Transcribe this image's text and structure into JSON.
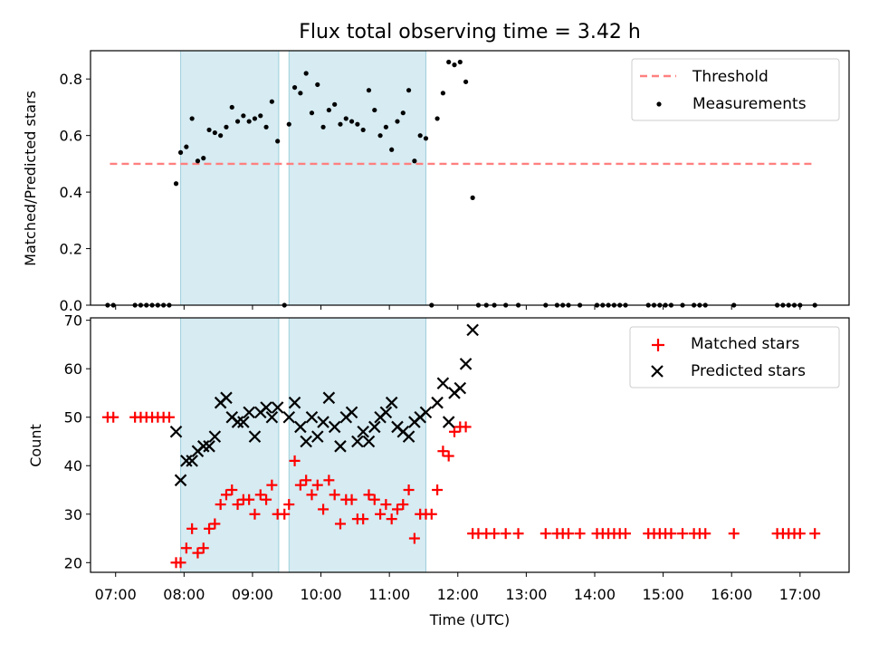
{
  "figure": {
    "title": "Flux total observing time = 3.42 h",
    "xlabel": "Time (UTC)",
    "x_ticks": [
      "07:00",
      "08:00",
      "09:00",
      "10:00",
      "11:00",
      "12:00",
      "13:00",
      "14:00",
      "15:00",
      "16:00",
      "17:00"
    ]
  },
  "chart_data": [
    {
      "type": "scatter",
      "ylabel": "Matched/Predicted stars",
      "xlim": [
        "06:38",
        "17:43"
      ],
      "ylim": [
        0,
        0.9
      ],
      "y_ticks": [
        "0.0",
        "0.2",
        "0.4",
        "0.6",
        "0.8"
      ],
      "legend_position": "top-right",
      "shaded_intervals": [
        [
          "07:57",
          "09:23"
        ],
        [
          "09:32",
          "11:32"
        ]
      ],
      "series": [
        {
          "name": "Threshold",
          "kind": "dashed-line",
          "color": "#ff8080",
          "points": [
            [
              "06:55",
              0.5
            ],
            [
              "17:10",
              0.5
            ]
          ]
        },
        {
          "name": "Measurements",
          "kind": "dots",
          "color": "#000000",
          "points": [
            [
              "06:53",
              0.0
            ],
            [
              "06:58",
              0.0
            ],
            [
              "07:17",
              0.0
            ],
            [
              "07:22",
              0.0
            ],
            [
              "07:27",
              0.0
            ],
            [
              "07:32",
              0.0
            ],
            [
              "07:37",
              0.0
            ],
            [
              "07:42",
              0.0
            ],
            [
              "07:47",
              0.0
            ],
            [
              "07:53",
              0.43
            ],
            [
              "07:57",
              0.54
            ],
            [
              "08:02",
              0.56
            ],
            [
              "08:07",
              0.66
            ],
            [
              "08:12",
              0.51
            ],
            [
              "08:17",
              0.52
            ],
            [
              "08:22",
              0.62
            ],
            [
              "08:27",
              0.61
            ],
            [
              "08:32",
              0.6
            ],
            [
              "08:37",
              0.63
            ],
            [
              "08:42",
              0.7
            ],
            [
              "08:47",
              0.65
            ],
            [
              "08:52",
              0.67
            ],
            [
              "08:57",
              0.65
            ],
            [
              "09:02",
              0.66
            ],
            [
              "09:07",
              0.67
            ],
            [
              "09:12",
              0.63
            ],
            [
              "09:17",
              0.72
            ],
            [
              "09:22",
              0.58
            ],
            [
              "09:28",
              0.0
            ],
            [
              "09:32",
              0.64
            ],
            [
              "09:37",
              0.77
            ],
            [
              "09:42",
              0.75
            ],
            [
              "09:47",
              0.82
            ],
            [
              "09:52",
              0.68
            ],
            [
              "09:57",
              0.78
            ],
            [
              "10:02",
              0.63
            ],
            [
              "10:07",
              0.69
            ],
            [
              "10:12",
              0.71
            ],
            [
              "10:17",
              0.64
            ],
            [
              "10:22",
              0.66
            ],
            [
              "10:27",
              0.65
            ],
            [
              "10:32",
              0.64
            ],
            [
              "10:37",
              0.62
            ],
            [
              "10:42",
              0.76
            ],
            [
              "10:47",
              0.69
            ],
            [
              "10:52",
              0.6
            ],
            [
              "10:57",
              0.63
            ],
            [
              "11:02",
              0.55
            ],
            [
              "11:07",
              0.65
            ],
            [
              "11:12",
              0.68
            ],
            [
              "11:17",
              0.76
            ],
            [
              "11:22",
              0.51
            ],
            [
              "11:27",
              0.6
            ],
            [
              "11:32",
              0.59
            ],
            [
              "11:37",
              0.0
            ],
            [
              "11:42",
              0.66
            ],
            [
              "11:47",
              0.75
            ],
            [
              "11:52",
              0.86
            ],
            [
              "11:57",
              0.85
            ],
            [
              "12:02",
              0.86
            ],
            [
              "12:07",
              0.79
            ],
            [
              "12:13",
              0.38
            ],
            [
              "12:18",
              0.0
            ],
            [
              "12:25",
              0.0
            ],
            [
              "12:32",
              0.0
            ],
            [
              "12:42",
              0.0
            ],
            [
              "12:53",
              0.0
            ],
            [
              "13:17",
              0.0
            ],
            [
              "13:27",
              0.0
            ],
            [
              "13:32",
              0.0
            ],
            [
              "13:37",
              0.0
            ],
            [
              "13:47",
              0.0
            ],
            [
              "14:02",
              0.0
            ],
            [
              "14:07",
              0.0
            ],
            [
              "14:12",
              0.0
            ],
            [
              "14:17",
              0.0
            ],
            [
              "14:22",
              0.0
            ],
            [
              "14:27",
              0.0
            ],
            [
              "14:47",
              0.0
            ],
            [
              "14:52",
              0.0
            ],
            [
              "14:57",
              0.0
            ],
            [
              "15:02",
              0.0
            ],
            [
              "15:07",
              0.0
            ],
            [
              "15:17",
              0.0
            ],
            [
              "15:27",
              0.0
            ],
            [
              "15:32",
              0.0
            ],
            [
              "15:37",
              0.0
            ],
            [
              "16:02",
              0.0
            ],
            [
              "16:40",
              0.0
            ],
            [
              "16:45",
              0.0
            ],
            [
              "16:50",
              0.0
            ],
            [
              "16:55",
              0.0
            ],
            [
              "17:00",
              0.0
            ],
            [
              "17:13",
              0.0
            ]
          ]
        }
      ]
    },
    {
      "type": "scatter",
      "ylabel": "Count",
      "xlim": [
        "06:38",
        "17:43"
      ],
      "ylim": [
        18,
        70.5
      ],
      "y_ticks": [
        "20",
        "30",
        "40",
        "50",
        "60",
        "70"
      ],
      "legend_position": "top-right",
      "shaded_intervals": [
        [
          "07:57",
          "09:23"
        ],
        [
          "09:32",
          "11:32"
        ]
      ],
      "series": [
        {
          "name": "Matched stars",
          "kind": "plus",
          "color": "#ff0000",
          "points": [
            [
              "06:53",
              50
            ],
            [
              "06:58",
              50
            ],
            [
              "07:17",
              50
            ],
            [
              "07:22",
              50
            ],
            [
              "07:27",
              50
            ],
            [
              "07:32",
              50
            ],
            [
              "07:37",
              50
            ],
            [
              "07:42",
              50
            ],
            [
              "07:47",
              50
            ],
            [
              "07:53",
              20
            ],
            [
              "07:57",
              20
            ],
            [
              "08:02",
              23
            ],
            [
              "08:07",
              27
            ],
            [
              "08:12",
              22
            ],
            [
              "08:17",
              23
            ],
            [
              "08:22",
              27
            ],
            [
              "08:27",
              28
            ],
            [
              "08:32",
              32
            ],
            [
              "08:37",
              34
            ],
            [
              "08:42",
              35
            ],
            [
              "08:47",
              32
            ],
            [
              "08:52",
              33
            ],
            [
              "08:57",
              33
            ],
            [
              "09:02",
              30
            ],
            [
              "09:07",
              34
            ],
            [
              "09:12",
              33
            ],
            [
              "09:17",
              36
            ],
            [
              "09:22",
              30
            ],
            [
              "09:28",
              30
            ],
            [
              "09:32",
              32
            ],
            [
              "09:37",
              41
            ],
            [
              "09:42",
              36
            ],
            [
              "09:47",
              37
            ],
            [
              "09:52",
              34
            ],
            [
              "09:57",
              36
            ],
            [
              "10:02",
              31
            ],
            [
              "10:07",
              37
            ],
            [
              "10:12",
              34
            ],
            [
              "10:17",
              28
            ],
            [
              "10:22",
              33
            ],
            [
              "10:27",
              33
            ],
            [
              "10:32",
              29
            ],
            [
              "10:37",
              29
            ],
            [
              "10:42",
              34
            ],
            [
              "10:47",
              33
            ],
            [
              "10:52",
              30
            ],
            [
              "10:57",
              32
            ],
            [
              "11:02",
              29
            ],
            [
              "11:07",
              31
            ],
            [
              "11:12",
              32
            ],
            [
              "11:17",
              35
            ],
            [
              "11:22",
              25
            ],
            [
              "11:27",
              30
            ],
            [
              "11:32",
              30
            ],
            [
              "11:37",
              30
            ],
            [
              "11:42",
              35
            ],
            [
              "11:47",
              43
            ],
            [
              "11:52",
              42
            ],
            [
              "11:57",
              47
            ],
            [
              "12:02",
              48
            ],
            [
              "12:07",
              48
            ],
            [
              "12:13",
              26
            ],
            [
              "12:18",
              26
            ],
            [
              "12:25",
              26
            ],
            [
              "12:32",
              26
            ],
            [
              "12:42",
              26
            ],
            [
              "12:53",
              26
            ],
            [
              "13:17",
              26
            ],
            [
              "13:27",
              26
            ],
            [
              "13:32",
              26
            ],
            [
              "13:37",
              26
            ],
            [
              "13:47",
              26
            ],
            [
              "14:02",
              26
            ],
            [
              "14:07",
              26
            ],
            [
              "14:12",
              26
            ],
            [
              "14:17",
              26
            ],
            [
              "14:22",
              26
            ],
            [
              "14:27",
              26
            ],
            [
              "14:47",
              26
            ],
            [
              "14:52",
              26
            ],
            [
              "14:57",
              26
            ],
            [
              "15:02",
              26
            ],
            [
              "15:07",
              26
            ],
            [
              "15:17",
              26
            ],
            [
              "15:27",
              26
            ],
            [
              "15:32",
              26
            ],
            [
              "15:37",
              26
            ],
            [
              "16:02",
              26
            ],
            [
              "16:40",
              26
            ],
            [
              "16:45",
              26
            ],
            [
              "16:50",
              26
            ],
            [
              "16:55",
              26
            ],
            [
              "17:00",
              26
            ],
            [
              "17:13",
              26
            ]
          ]
        },
        {
          "name": "Predicted stars",
          "kind": "cross",
          "color": "#000000",
          "points": [
            [
              "07:53",
              47
            ],
            [
              "07:57",
              37
            ],
            [
              "08:02",
              41
            ],
            [
              "08:07",
              41
            ],
            [
              "08:12",
              43
            ],
            [
              "08:17",
              44
            ],
            [
              "08:22",
              44
            ],
            [
              "08:27",
              46
            ],
            [
              "08:32",
              53
            ],
            [
              "08:37",
              54
            ],
            [
              "08:42",
              50
            ],
            [
              "08:47",
              49
            ],
            [
              "08:52",
              49
            ],
            [
              "08:57",
              51
            ],
            [
              "09:02",
              46
            ],
            [
              "09:07",
              51
            ],
            [
              "09:12",
              52
            ],
            [
              "09:17",
              50
            ],
            [
              "09:22",
              52
            ],
            [
              "09:32",
              50
            ],
            [
              "09:37",
              53
            ],
            [
              "09:42",
              48
            ],
            [
              "09:47",
              45
            ],
            [
              "09:52",
              50
            ],
            [
              "09:57",
              46
            ],
            [
              "10:02",
              49
            ],
            [
              "10:07",
              54
            ],
            [
              "10:12",
              48
            ],
            [
              "10:17",
              44
            ],
            [
              "10:22",
              50
            ],
            [
              "10:27",
              51
            ],
            [
              "10:32",
              45
            ],
            [
              "10:37",
              47
            ],
            [
              "10:42",
              45
            ],
            [
              "10:47",
              48
            ],
            [
              "10:52",
              50
            ],
            [
              "10:57",
              51
            ],
            [
              "11:02",
              53
            ],
            [
              "11:07",
              48
            ],
            [
              "11:12",
              47
            ],
            [
              "11:17",
              46
            ],
            [
              "11:22",
              49
            ],
            [
              "11:27",
              50
            ],
            [
              "11:32",
              51
            ],
            [
              "11:42",
              53
            ],
            [
              "11:47",
              57
            ],
            [
              "11:52",
              49
            ],
            [
              "11:57",
              55
            ],
            [
              "12:02",
              56
            ],
            [
              "12:07",
              61
            ],
            [
              "12:13",
              68
            ]
          ]
        }
      ]
    }
  ]
}
